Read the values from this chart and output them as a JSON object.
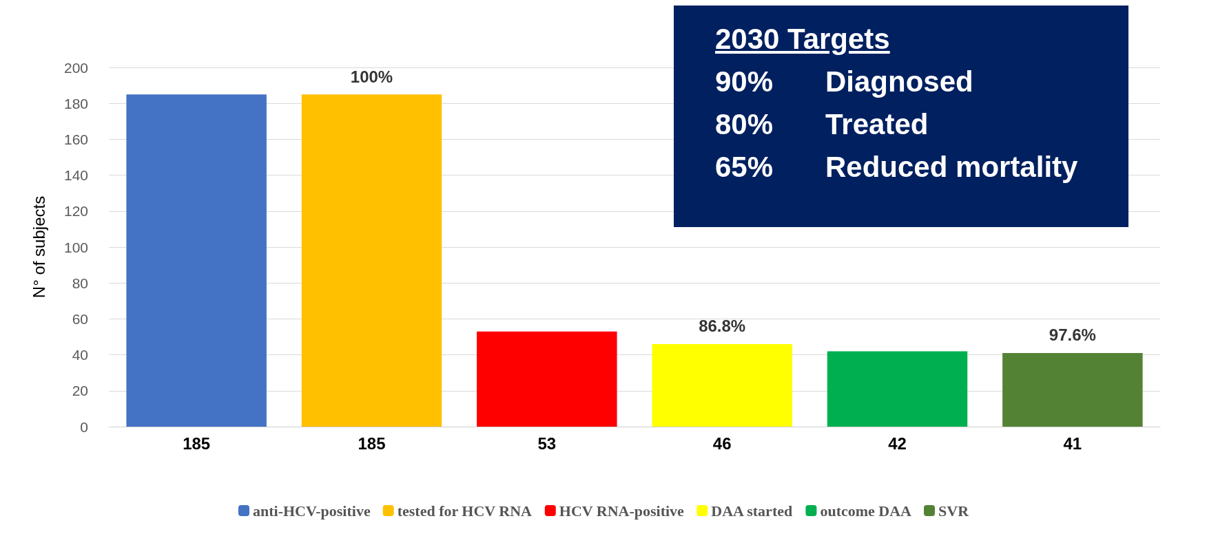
{
  "chart_data": {
    "type": "bar",
    "ylabel": "N° of subjects",
    "categories": [
      null,
      null,
      null,
      null,
      null,
      null
    ],
    "series": [
      {
        "name": "anti-HCV-positive",
        "color": "#4472c4",
        "values": [
          185,
          null,
          null,
          null,
          null,
          null
        ]
      },
      {
        "name": "tested for HCV RNA",
        "color": "#ffc000",
        "values": [
          null,
          185,
          null,
          null,
          null,
          null
        ]
      },
      {
        "name": "HCV RNA-positive",
        "color": "#ff0000",
        "values": [
          null,
          null,
          53,
          null,
          null,
          null
        ]
      },
      {
        "name": "DAA started",
        "color": "#ffff00",
        "values": [
          null,
          null,
          null,
          46,
          null,
          null
        ]
      },
      {
        "name": "outcome DAA",
        "color": "#00b050",
        "values": [
          null,
          null,
          null,
          null,
          42,
          null
        ]
      },
      {
        "name": "SVR",
        "color": "#548235",
        "values": [
          null,
          null,
          null,
          null,
          null,
          41
        ]
      }
    ],
    "ylim": [
      0,
      200
    ],
    "yticks": [
      0,
      20,
      40,
      60,
      80,
      100,
      120,
      140,
      160,
      180,
      200
    ],
    "grid": "y",
    "legend": "bottom",
    "data_labels": true,
    "annotations": [
      {
        "text": "100%",
        "y": 185
      },
      {
        "text": "86.8%",
        "y": 46
      },
      {
        "text": "97.6%",
        "y": 41
      },
      "2030 Targets",
      "90%",
      "Diagnosed",
      "80%",
      "Treated",
      "65%",
      "Reduced mortality"
    ]
  }
}
